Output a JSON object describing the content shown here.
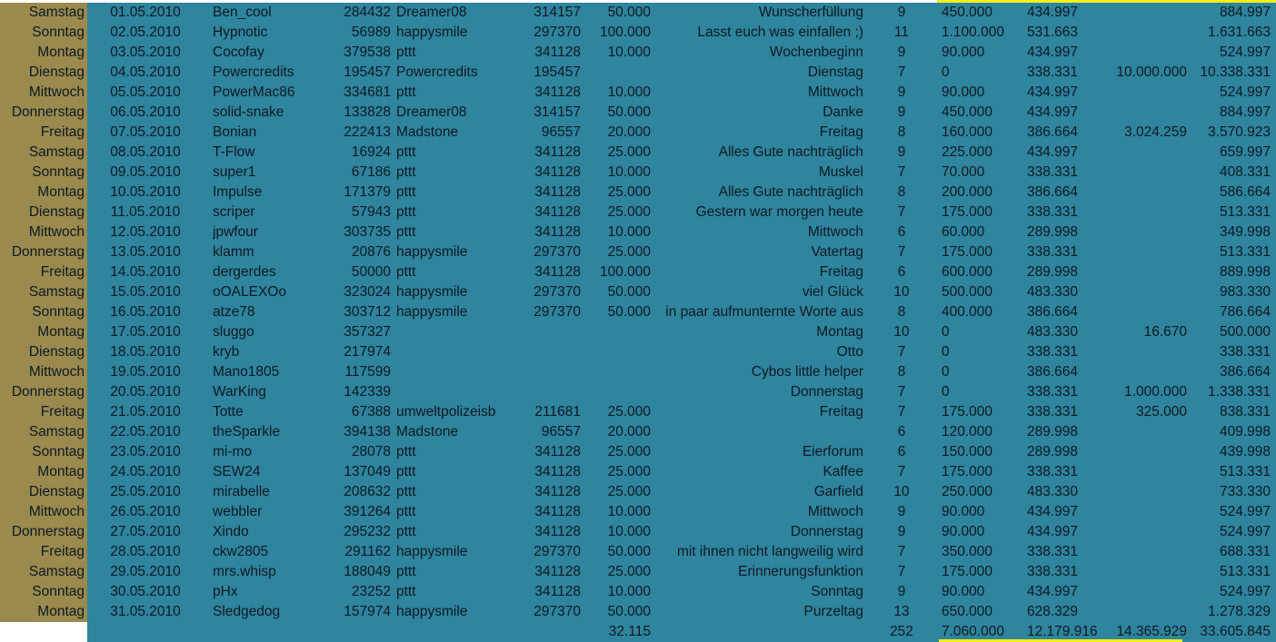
{
  "colors": {
    "sheet_bg": "#2f849e",
    "day_column_bg": "#9a8a4e",
    "highlight_border": "#f2ef1a"
  },
  "rows": [
    [
      "Samstag",
      "01.05.2010",
      "Ben_cool",
      "284432",
      "Dreamer08",
      "314157",
      "50.000",
      "Wunscherfüllung",
      "9",
      "450.000",
      "434.997",
      "",
      "884.997"
    ],
    [
      "Sonntag",
      "02.05.2010",
      "Hypnotic",
      "56989",
      "happysmile",
      "297370",
      "100.000",
      "Lasst euch was einfallen ;)",
      "11",
      "1.100.000",
      "531.663",
      "",
      "1.631.663"
    ],
    [
      "Montag",
      "03.05.2010",
      "Cocofay",
      "379538",
      "pttt",
      "341128",
      "10.000",
      "Wochenbeginn",
      "9",
      "90.000",
      "434.997",
      "",
      "524.997"
    ],
    [
      "Dienstag",
      "04.05.2010",
      "Powercredits",
      "195457",
      "Powercredits",
      "195457",
      "",
      "Dienstag",
      "7",
      "0",
      "338.331",
      "10.000.000",
      "10.338.331"
    ],
    [
      "Mittwoch",
      "05.05.2010",
      "PowerMac86",
      "334681",
      "pttt",
      "341128",
      "10.000",
      "Mittwoch",
      "9",
      "90.000",
      "434.997",
      "",
      "524.997"
    ],
    [
      "Donnerstag",
      "06.05.2010",
      "solid-snake",
      "133828",
      "Dreamer08",
      "314157",
      "50.000",
      "Danke",
      "9",
      "450.000",
      "434.997",
      "",
      "884.997"
    ],
    [
      "Freitag",
      "07.05.2010",
      "Bonian",
      "222413",
      "Madstone",
      "96557",
      "20.000",
      "Freitag",
      "8",
      "160.000",
      "386.664",
      "3.024.259",
      "3.570.923"
    ],
    [
      "Samstag",
      "08.05.2010",
      "T-Flow",
      "16924",
      "pttt",
      "341128",
      "25.000",
      "Alles Gute nachträglich",
      "9",
      "225.000",
      "434.997",
      "",
      "659.997"
    ],
    [
      "Sonntag",
      "09.05.2010",
      "super1",
      "67186",
      "pttt",
      "341128",
      "10.000",
      "Muskel",
      "7",
      "70.000",
      "338.331",
      "",
      "408.331"
    ],
    [
      "Montag",
      "10.05.2010",
      "Impulse",
      "171379",
      "pttt",
      "341128",
      "25.000",
      "Alles Gute nachträglich",
      "8",
      "200.000",
      "386.664",
      "",
      "586.664"
    ],
    [
      "Dienstag",
      "11.05.2010",
      "scriper",
      "57943",
      "pttt",
      "341128",
      "25.000",
      "Gestern war morgen heute",
      "7",
      "175.000",
      "338.331",
      "",
      "513.331"
    ],
    [
      "Mittwoch",
      "12.05.2010",
      "jpwfour",
      "303735",
      "pttt",
      "341128",
      "10.000",
      "Mittwoch",
      "6",
      "60.000",
      "289.998",
      "",
      "349.998"
    ],
    [
      "Donnerstag",
      "13.05.2010",
      "klamm",
      "20876",
      "happysmile",
      "297370",
      "25.000",
      "Vatertag",
      "7",
      "175.000",
      "338.331",
      "",
      "513.331"
    ],
    [
      "Freitag",
      "14.05.2010",
      "dergerdes",
      "50000",
      "pttt",
      "341128",
      "100.000",
      "Freitag",
      "6",
      "600.000",
      "289.998",
      "",
      "889.998"
    ],
    [
      "Samstag",
      "15.05.2010",
      "oOALEXOo",
      "323024",
      "happysmile",
      "297370",
      "50.000",
      "viel Glück",
      "10",
      "500.000",
      "483.330",
      "",
      "983.330"
    ],
    [
      "Sonntag",
      "16.05.2010",
      "atze78",
      "303712",
      "happysmile",
      "297370",
      "50.000",
      "in paar aufmunternte Worte aus",
      "8",
      "400.000",
      "386.664",
      "",
      "786.664"
    ],
    [
      "Montag",
      "17.05.2010",
      "sluggo",
      "357327",
      "",
      "",
      "",
      "Montag",
      "10",
      "0",
      "483.330",
      "16.670",
      "500.000"
    ],
    [
      "Dienstag",
      "18.05.2010",
      "kryb",
      "217974",
      "",
      "",
      "",
      "Otto",
      "7",
      "0",
      "338.331",
      "",
      "338.331"
    ],
    [
      "Mittwoch",
      "19.05.2010",
      "Mano1805",
      "117599",
      "",
      "",
      "",
      "Cybos little helper",
      "8",
      "0",
      "386.664",
      "",
      "386.664"
    ],
    [
      "Donnerstag",
      "20.05.2010",
      "WarKing",
      "142339",
      "",
      "",
      "",
      "Donnerstag",
      "7",
      "0",
      "338.331",
      "1.000.000",
      "1.338.331"
    ],
    [
      "Freitag",
      "21.05.2010",
      "Totte",
      "67388",
      "umweltpolizeisb",
      "211681",
      "25.000",
      "Freitag",
      "7",
      "175.000",
      "338.331",
      "325.000",
      "838.331"
    ],
    [
      "Samstag",
      "22.05.2010",
      "theSparkle",
      "394138",
      "Madstone",
      "96557",
      "20.000",
      "",
      "6",
      "120.000",
      "289.998",
      "",
      "409.998"
    ],
    [
      "Sonntag",
      "23.05.2010",
      "mi-mo",
      "28078",
      "pttt",
      "341128",
      "25.000",
      "Eierforum",
      "6",
      "150.000",
      "289.998",
      "",
      "439.998"
    ],
    [
      "Montag",
      "24.05.2010",
      "SEW24",
      "137049",
      "pttt",
      "341128",
      "25.000",
      "Kaffee",
      "7",
      "175.000",
      "338.331",
      "",
      "513.331"
    ],
    [
      "Dienstag",
      "25.05.2010",
      "mirabelle",
      "208632",
      "pttt",
      "341128",
      "25.000",
      "Garfield",
      "10",
      "250.000",
      "483.330",
      "",
      "733.330"
    ],
    [
      "Mittwoch",
      "26.05.2010",
      "webbler",
      "391264",
      "pttt",
      "341128",
      "10.000",
      "Mittwoch",
      "9",
      "90.000",
      "434.997",
      "",
      "524.997"
    ],
    [
      "Donnerstag",
      "27.05.2010",
      "Xindo",
      "295232",
      "pttt",
      "341128",
      "10.000",
      "Donnerstag",
      "9",
      "90.000",
      "434.997",
      "",
      "524.997"
    ],
    [
      "Freitag",
      "28.05.2010",
      "ckw2805",
      "291162",
      "happysmile",
      "297370",
      "50.000",
      "mit ihnen nicht langweilig wird",
      "7",
      "350.000",
      "338.331",
      "",
      "688.331"
    ],
    [
      "Samstag",
      "29.05.2010",
      "mrs.whisp",
      "188049",
      "pttt",
      "341128",
      "25.000",
      "Erinnerungsfunktion",
      "7",
      "175.000",
      "338.331",
      "",
      "513.331"
    ],
    [
      "Sonntag",
      "30.05.2010",
      "pHx",
      "23252",
      "pttt",
      "341128",
      "10.000",
      "Sonntag",
      "9",
      "90.000",
      "434.997",
      "",
      "524.997"
    ],
    [
      "Montag",
      "31.05.2010",
      "Sledgedog",
      "157974",
      "happysmile",
      "297370",
      "50.000",
      "Purzeltag",
      "13",
      "650.000",
      "628.329",
      "",
      "1.278.329"
    ]
  ],
  "totals": [
    "",
    "",
    "",
    "",
    "",
    "",
    "32.115",
    "",
    "252",
    "7.060.000",
    "12.179.916",
    "14.365.929",
    "33.605.845"
  ]
}
